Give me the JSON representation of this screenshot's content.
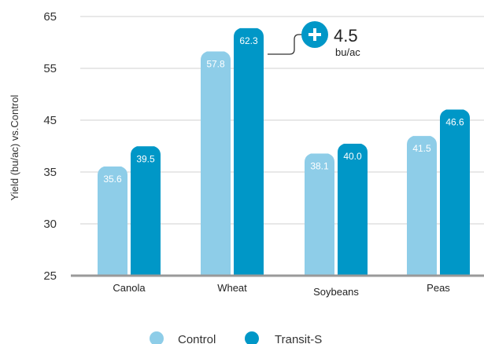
{
  "chart_data": {
    "type": "bar",
    "title": "",
    "xlabel": "",
    "ylabel": "Yield (bu/ac) vs.Control",
    "y_ticks": [
      25,
      30,
      35,
      45,
      55,
      65
    ],
    "categories": [
      "Canola",
      "Wheat",
      "Soybeans",
      "Peas"
    ],
    "series": [
      {
        "name": "Control",
        "values": [
          35.6,
          57.8,
          38.1,
          41.5
        ],
        "labels": [
          "35.6",
          "57.8",
          "38.1",
          "41.5"
        ],
        "color": "#8ecde8"
      },
      {
        "name": "Transit-S",
        "values": [
          39.5,
          62.3,
          40.0,
          46.6
        ],
        "labels": [
          "39.5",
          "62.3",
          "40.0",
          "46.6"
        ],
        "color": "#0097c7"
      }
    ],
    "grid": true,
    "legend": "bottom",
    "annotation": {
      "value": "4.5",
      "unit": "bu/ac",
      "icon": "plus-circle-icon",
      "category": "Wheat"
    }
  }
}
